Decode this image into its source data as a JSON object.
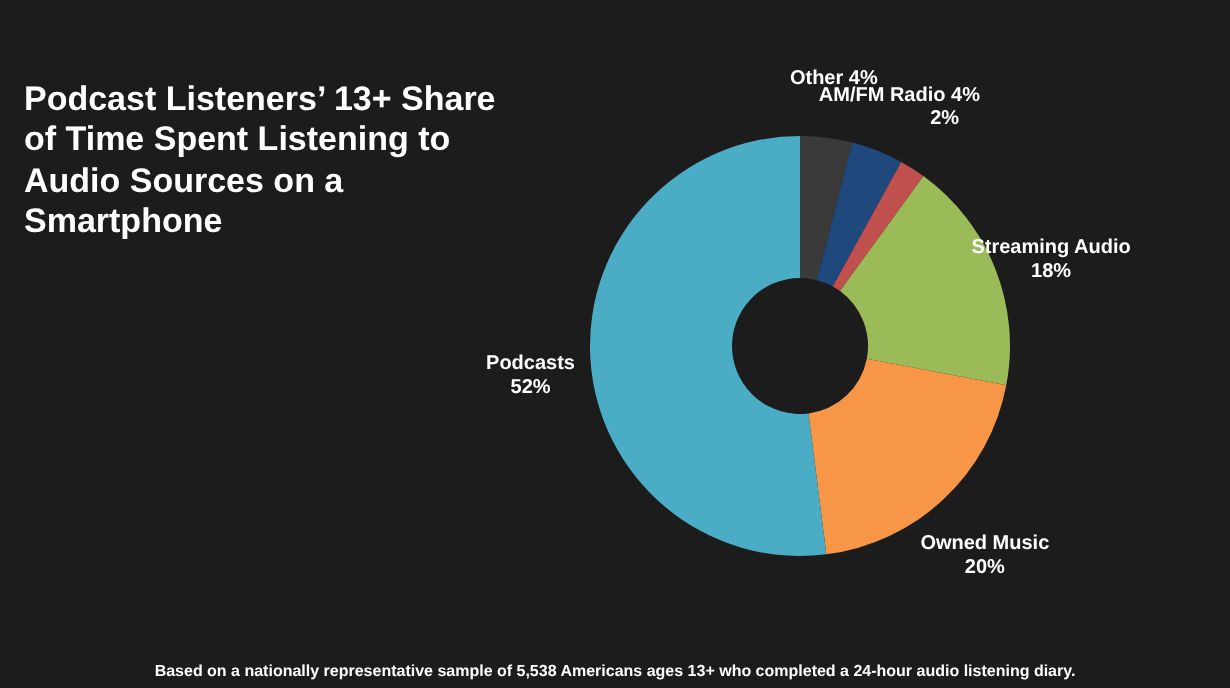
{
  "chart_data": {
    "type": "donut",
    "title": "Podcast Listeners’ 13+ Share of Time Spent Listening to Audio Sources on a Smartphone",
    "categories": [
      "Other",
      "AM/FM Radio",
      null,
      "Streaming Audio",
      "Owned Music",
      "Podcasts"
    ],
    "values": [
      4,
      4,
      2,
      18,
      20,
      52
    ],
    "colors": [
      "#3a3a3a",
      "#1f497d",
      "#c0504d",
      "#9bbb59",
      "#f79646",
      "#4bacc6"
    ],
    "value_labels": [
      "4%",
      "4%",
      "2%",
      "18%",
      "20%",
      "52%"
    ],
    "annotations": [
      "Based on a nationally representative sample of 5,538 Americans ages 13+ who completed a 24-hour audio listening diary."
    ]
  }
}
